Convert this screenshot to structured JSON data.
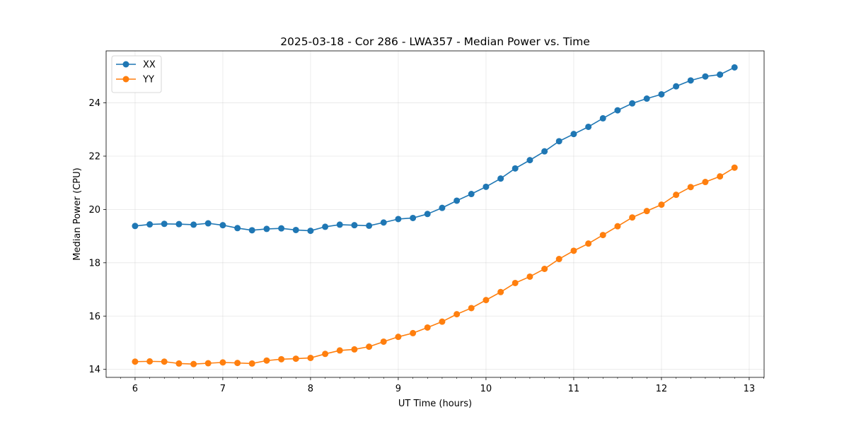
{
  "chart_data": {
    "type": "line",
    "title": "2025-03-18 - Cor 286 - LWA357 - Median Power vs. Time",
    "xlabel": "UT Time (hours)",
    "ylabel": "Median Power (CPU)",
    "xlim": [
      5.67,
      13.17
    ],
    "ylim": [
      13.7,
      25.95
    ],
    "xticks": [
      6,
      7,
      8,
      9,
      10,
      11,
      12,
      13
    ],
    "yticks": [
      14,
      16,
      18,
      20,
      22,
      24
    ],
    "grid": true,
    "legend": "top-left",
    "x": [
      6.0,
      6.167,
      6.333,
      6.5,
      6.667,
      6.833,
      7.0,
      7.167,
      7.333,
      7.5,
      7.667,
      7.833,
      8.0,
      8.167,
      8.333,
      8.5,
      8.667,
      8.833,
      9.0,
      9.167,
      9.333,
      9.5,
      9.667,
      9.833,
      10.0,
      10.167,
      10.333,
      10.5,
      10.667,
      10.833,
      11.0,
      11.167,
      11.333,
      11.5,
      11.667,
      11.833,
      12.0,
      12.167,
      12.333,
      12.5,
      12.667,
      12.833
    ],
    "series": [
      {
        "name": "XX",
        "color": "#1f77b4",
        "values": [
          19.38,
          19.44,
          19.46,
          19.45,
          19.43,
          19.48,
          19.41,
          19.3,
          19.22,
          19.27,
          19.29,
          19.23,
          19.2,
          19.35,
          19.43,
          19.41,
          19.39,
          19.51,
          19.64,
          19.68,
          19.83,
          20.06,
          20.33,
          20.58,
          20.85,
          21.16,
          21.54,
          21.85,
          22.18,
          22.56,
          22.83,
          23.1,
          23.42,
          23.72,
          23.98,
          24.16,
          24.32,
          24.62,
          24.84,
          24.99,
          25.06,
          25.33
        ]
      },
      {
        "name": "YY",
        "color": "#ff7f0e",
        "values": [
          14.29,
          14.3,
          14.29,
          14.22,
          14.2,
          14.23,
          14.26,
          14.24,
          14.22,
          14.33,
          14.38,
          14.4,
          14.43,
          14.58,
          14.71,
          14.75,
          14.85,
          15.04,
          15.22,
          15.36,
          15.57,
          15.79,
          16.07,
          16.3,
          16.6,
          16.9,
          17.24,
          17.48,
          17.77,
          18.14,
          18.45,
          18.72,
          19.04,
          19.37,
          19.7,
          19.94,
          20.18,
          20.55,
          20.84,
          21.03,
          21.24,
          21.57
        ]
      }
    ]
  }
}
